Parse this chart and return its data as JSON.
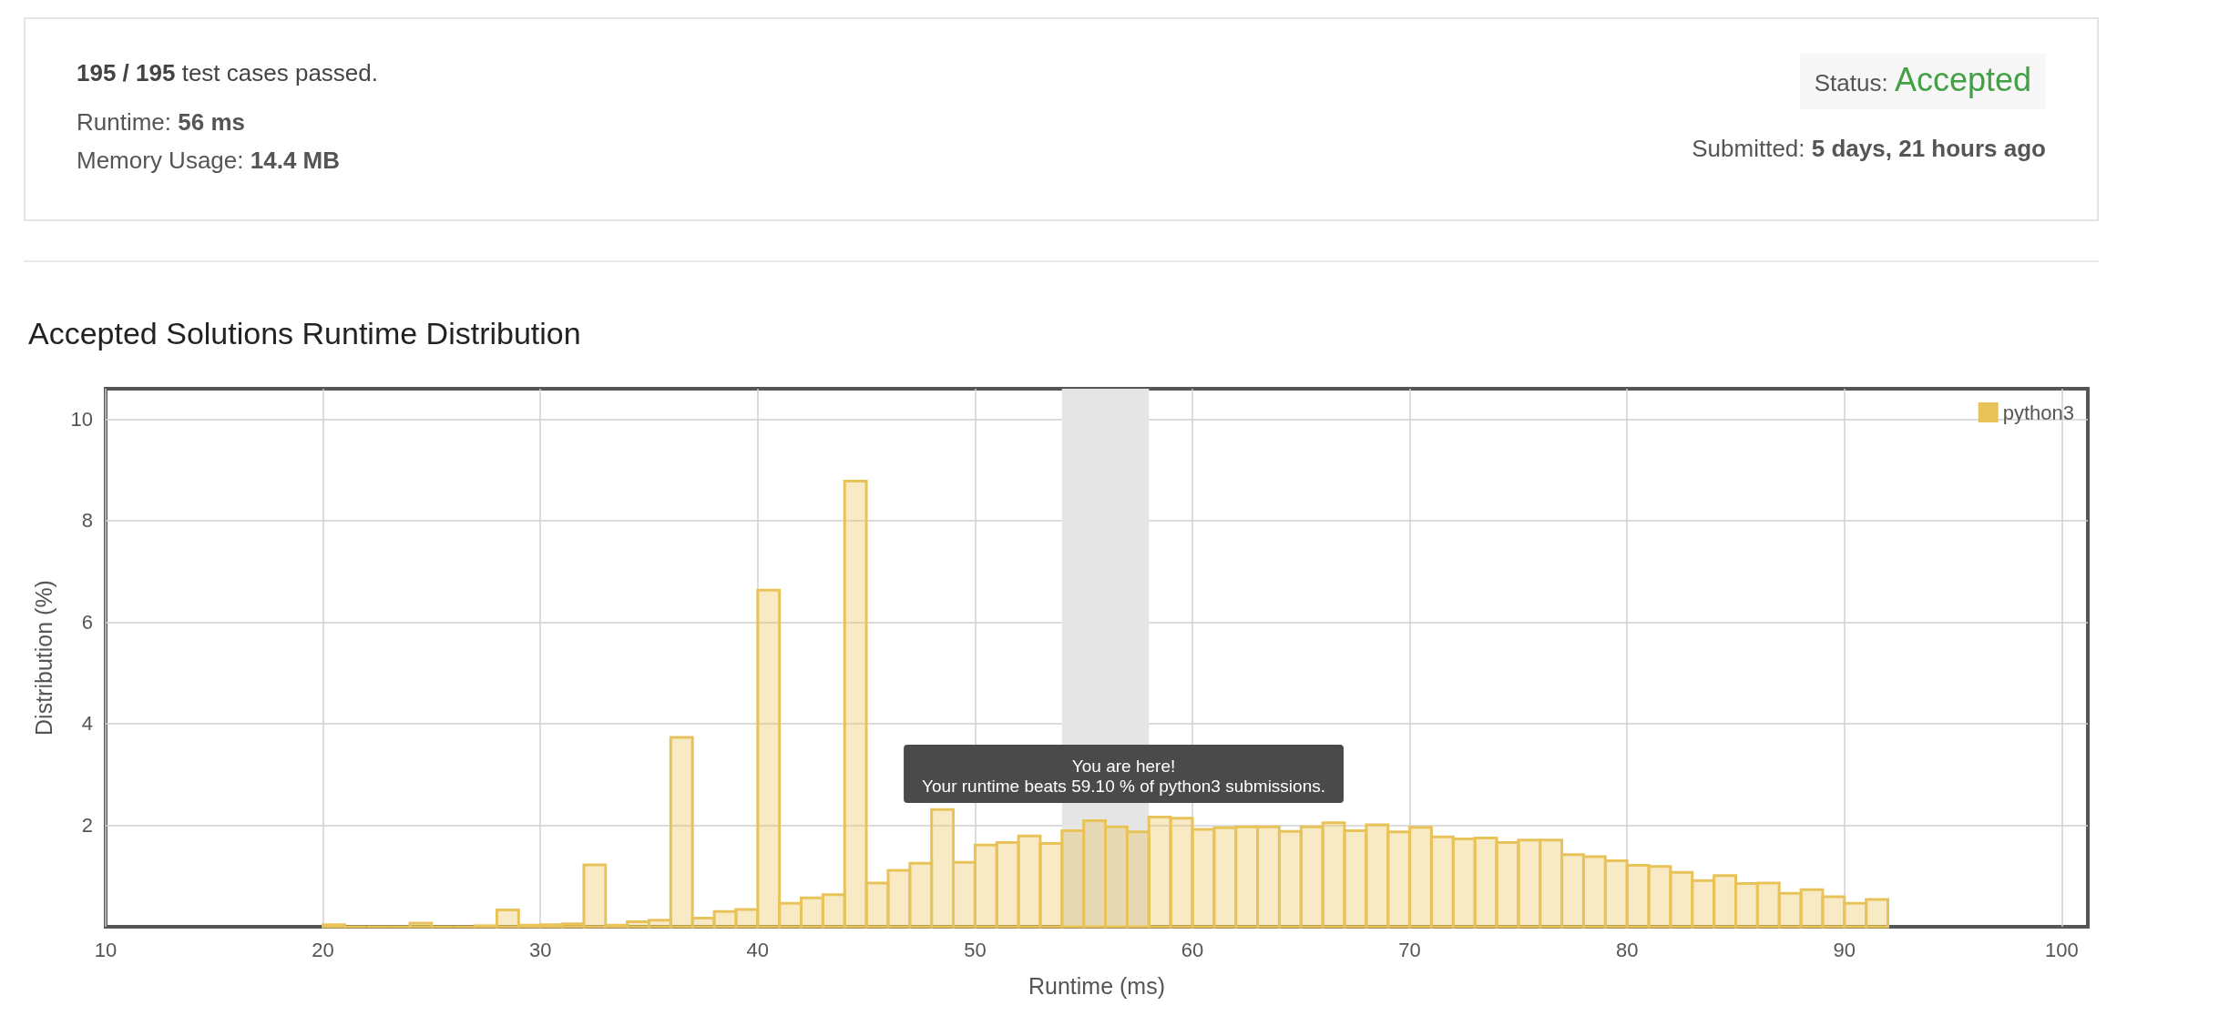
{
  "chart_data": [
    {
      "type": "other",
      "annotations": [
        "195 / 195",
        "test cases passed.",
        "Runtime:",
        "56 ms",
        "Memory Usage:",
        "14.4 MB",
        "Status:",
        "Accepted",
        "Submitted:",
        "5 days, 21 hours ago"
      ]
    },
    {
      "type": "histogram",
      "title": "Accepted Solutions Runtime Distribution",
      "xlabel": "Runtime (ms)",
      "ylabel": "Distribution (%)",
      "bins": [
        20,
        21,
        22,
        23,
        24,
        25,
        26,
        27,
        28,
        29,
        30,
        31,
        32,
        33,
        34,
        35,
        36,
        37,
        38,
        39,
        40,
        41,
        42,
        43,
        44,
        45,
        46,
        47,
        48,
        49,
        50,
        51,
        52,
        53,
        54,
        55,
        56,
        57,
        58,
        59,
        60,
        61,
        62,
        63,
        64,
        65,
        66,
        67,
        68,
        69,
        70,
        71,
        72,
        73,
        74,
        75,
        76,
        77,
        78,
        79,
        80,
        81,
        82,
        83,
        84,
        85,
        86,
        87,
        88,
        89,
        90,
        91,
        92
      ],
      "series": [
        {
          "name": "python3",
          "color": "#e8c35a",
          "values": [
            0.04,
            0,
            0,
            0,
            0.07,
            0,
            0,
            0.02,
            0.33,
            0.03,
            0.04,
            0.06,
            1.22,
            0.03,
            0.1,
            0.13,
            3.73,
            0.17,
            0.3,
            0.34,
            6.63,
            0.46,
            0.57,
            0.63,
            8.78,
            0.86,
            1.11,
            1.25,
            2.31,
            1.27,
            1.61,
            1.66,
            1.79,
            1.64,
            1.89,
            2.09,
            1.97,
            1.87,
            2.16,
            2.14,
            1.92,
            1.95,
            1.97,
            1.97,
            1.88,
            1.97,
            2.05,
            1.89,
            2.01,
            1.87,
            1.96,
            1.77,
            1.73,
            1.75,
            1.66,
            1.71,
            1.71,
            1.42,
            1.38,
            1.3,
            1.21,
            1.19,
            1.07,
            0.91,
            1.01,
            0.85,
            0.86,
            0.66,
            0.73,
            0.59,
            0.46,
            0.54
          ]
        }
      ],
      "xlim": [
        10,
        101.2
      ],
      "xticks": [
        10,
        20,
        30,
        40,
        50,
        60,
        70,
        80,
        90,
        100
      ],
      "ylim": [
        0,
        10.6
      ],
      "yticks": [
        2,
        4,
        6,
        8,
        10
      ],
      "grid": true,
      "legend": "top right",
      "bands": [
        {
          "axis": "x",
          "from": 54,
          "to": 58,
          "color": "#e5e5e5"
        }
      ],
      "annotations": [
        "You are here!\nYour runtime beats 59.10 % of python3 submissions."
      ]
    }
  ]
}
